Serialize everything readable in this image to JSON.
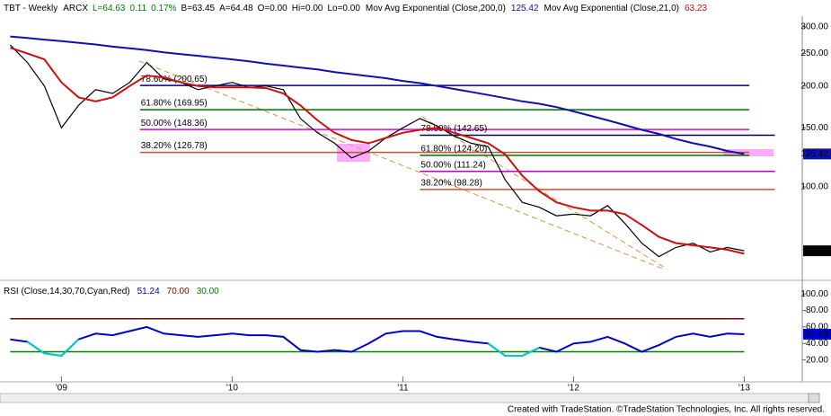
{
  "chart_data": [
    {
      "type": "line",
      "symbol": "TBT - Weekly",
      "exchange": "ARCX",
      "quote": [
        "L=64.63",
        "0.11",
        "0.17%",
        "B=63.45",
        "A=64.48",
        "O=0.00",
        "Hi=0.00",
        "Lo=0.00"
      ],
      "quote_color": "#008000",
      "x": [
        2008.7,
        2008.8,
        2008.9,
        2009.0,
        2009.1,
        2009.2,
        2009.3,
        2009.4,
        2009.5,
        2009.6,
        2009.7,
        2009.8,
        2009.9,
        2010.0,
        2010.1,
        2010.2,
        2010.3,
        2010.4,
        2010.5,
        2010.6,
        2010.7,
        2010.8,
        2010.9,
        2011.0,
        2011.1,
        2011.2,
        2011.3,
        2011.4,
        2011.5,
        2011.6,
        2011.7,
        2011.8,
        2011.9,
        2012.0,
        2012.1,
        2012.2,
        2012.3,
        2012.4,
        2012.5,
        2012.6,
        2012.7,
        2012.8,
        2012.9,
        2013.0
      ],
      "series": [
        {
          "color": "#000000",
          "values": [
            265,
            235,
            200,
            150,
            175,
            195,
            190,
            205,
            235,
            210,
            205,
            195,
            200,
            205,
            198,
            200,
            195,
            160,
            145,
            135,
            122,
            128,
            140,
            150,
            160,
            152,
            142,
            135,
            132,
            105,
            90,
            87,
            82,
            83,
            82,
            88,
            78,
            68,
            62,
            66,
            68,
            64,
            66,
            64.52
          ]
        },
        {
          "name": "Mov Avg Exponential (Close,200,0)",
          "color": "#1010b0",
          "values": [
            281,
            278,
            275,
            272,
            269,
            266,
            262,
            259,
            256,
            252,
            249,
            246,
            243,
            240,
            237,
            233,
            230,
            227,
            224,
            220,
            217,
            214,
            211,
            207,
            204,
            200,
            196,
            192,
            188,
            184,
            180,
            177,
            173,
            168,
            163,
            158,
            153,
            148,
            144,
            139,
            135,
            132,
            128,
            125.42
          ]
        },
        {
          "name": "Mov Avg Exponential (Close,21,0)",
          "color": "#cc1010",
          "values": [
            260,
            250,
            240,
            205,
            185,
            180,
            185,
            200,
            215,
            212,
            205,
            200,
            198,
            198,
            198,
            197,
            190,
            175,
            158,
            145,
            138,
            135,
            140,
            145,
            148,
            150,
            145,
            140,
            135,
            125,
            108,
            97,
            90,
            87,
            85,
            85,
            83,
            77,
            71,
            68,
            67,
            66,
            65,
            63.23
          ]
        }
      ],
      "log_scale": true,
      "xlim": [
        2008.64,
        2013.34
      ],
      "xticks": [
        {
          "value": 2009,
          "label": "'09"
        },
        {
          "value": 2010,
          "label": "'10"
        },
        {
          "value": 2011,
          "label": "'11"
        },
        {
          "value": 2012,
          "label": "'12"
        },
        {
          "value": 2013,
          "label": "'13"
        }
      ],
      "ylim": [
        55,
        319
      ],
      "yticks": [
        {
          "value": 300,
          "label": "300.00"
        },
        {
          "value": 250,
          "label": "250.00"
        },
        {
          "value": 200,
          "label": "200.00"
        },
        {
          "value": 150,
          "label": "150.00"
        },
        {
          "value": 100,
          "label": "100.00"
        }
      ],
      "levels": [
        {
          "label": "78.60% (200.65)",
          "value": 200.65,
          "color": "#000080",
          "x_start": 2009.46,
          "x_end": 2013.03
        },
        {
          "label": "61.80% (169.95)",
          "value": 169.95,
          "color": "#007000",
          "x_start": 2009.46,
          "x_end": 2013.03
        },
        {
          "label": "50.00% (148.36)",
          "value": 148.36,
          "color": "#e000e0",
          "x_start": 2009.46,
          "x_end": 2013.03
        },
        {
          "label": "38.20% (126.78)",
          "value": 126.78,
          "color": "#d05030",
          "x_start": 2009.46,
          "x_end": 2013.03
        },
        {
          "label": "78.60% (142.65)",
          "value": 142.65,
          "color": "#000050",
          "x_start": 2011.1,
          "x_end": 2013.18
        },
        {
          "label": "61.80% (124.20)",
          "value": 124.2,
          "color": "#007000",
          "x_start": 2011.1,
          "x_end": 2013.03
        },
        {
          "label": "50.00% (111.24)",
          "value": 111.24,
          "color": "#c000c0",
          "x_start": 2011.1,
          "x_end": 2013.18
        },
        {
          "label": "38.20% (98.28)",
          "value": 98.28,
          "color": "#d05030",
          "x_start": 2011.1,
          "x_end": 2013.18
        }
      ]
    },
    {
      "type": "line",
      "title": "RSI (Close,14,30,70,Cyan,Red)",
      "series": [
        {
          "color": "#0000cc",
          "low_color": "#00cccc",
          "values": [
            45,
            42,
            28,
            25,
            45,
            52,
            50,
            55,
            60,
            52,
            50,
            48,
            50,
            52,
            50,
            50,
            48,
            32,
            30,
            32,
            30,
            40,
            52,
            55,
            55,
            48,
            45,
            42,
            40,
            25,
            25,
            35,
            30,
            40,
            42,
            48,
            40,
            30,
            38,
            48,
            52,
            48,
            52,
            51.24
          ]
        }
      ],
      "ylim": [
        0,
        110
      ],
      "yticks": [
        {
          "value": 100,
          "label": "100.00"
        },
        {
          "value": 80,
          "label": "80.00"
        },
        {
          "value": 60,
          "label": "60.00"
        },
        {
          "value": 40,
          "label": "40.00"
        },
        {
          "value": 20,
          "label": "20.00"
        }
      ],
      "levels": [
        {
          "value": 70,
          "label": "70.00",
          "color": "#800000"
        },
        {
          "value": 30,
          "label": "30.00",
          "color": "#008000"
        }
      ]
    }
  ],
  "footer": "Created with TradeStation. ©TradeStation Technologies, Inc. All rights reserved."
}
